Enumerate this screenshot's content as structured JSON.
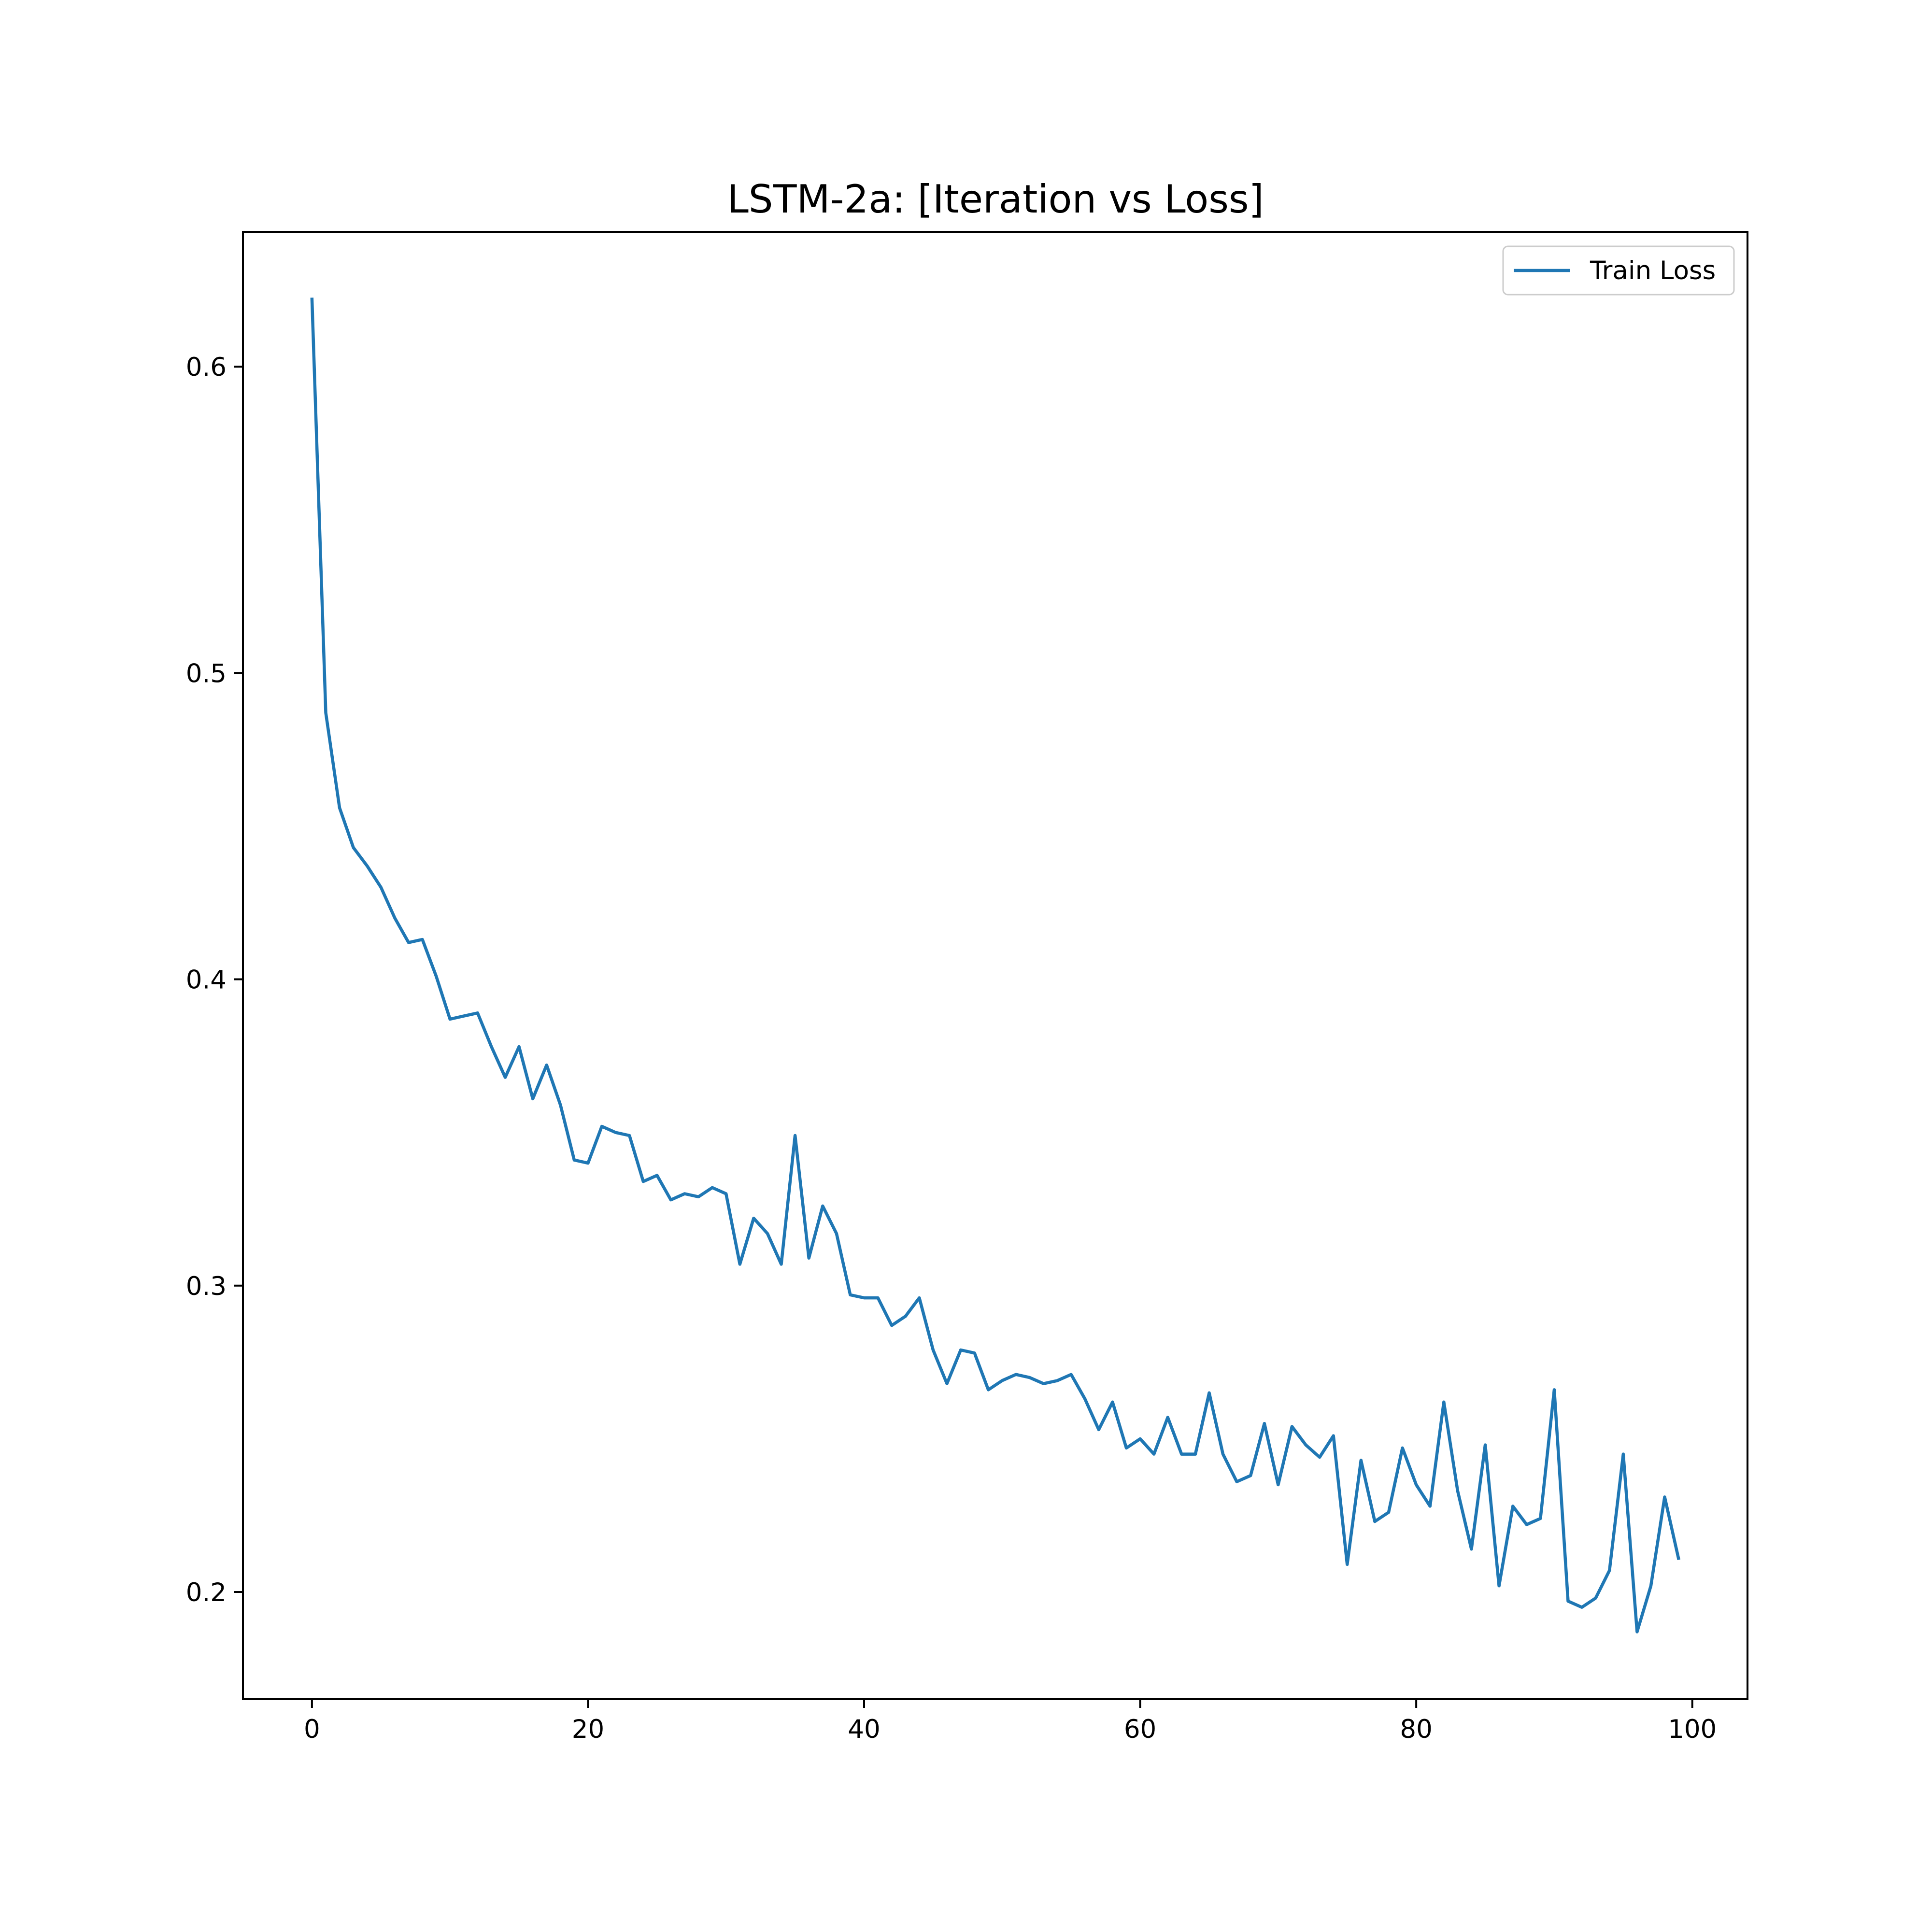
{
  "chart_data": {
    "type": "line",
    "title": "LSTM-2a: [Iteration vs Loss]",
    "xlabel": "",
    "ylabel": "",
    "xlim": [
      -5,
      104
    ],
    "ylim": [
      0.165,
      0.644
    ],
    "xticks": [
      0,
      20,
      40,
      60,
      80,
      100
    ],
    "yticks": [
      0.2,
      0.3,
      0.4,
      0.5,
      0.6
    ],
    "xtick_labels": [
      "0",
      "20",
      "40",
      "60",
      "80",
      "100"
    ],
    "ytick_labels": [
      "0.2",
      "0.3",
      "0.4",
      "0.5",
      "0.6"
    ],
    "grid": false,
    "legend_position": "top-right",
    "series": [
      {
        "name": "Train Loss",
        "color": "#1f77b4",
        "x": [
          0,
          1,
          2,
          3,
          4,
          5,
          6,
          7,
          8,
          9,
          10,
          11,
          12,
          13,
          14,
          15,
          16,
          17,
          18,
          19,
          20,
          21,
          22,
          23,
          24,
          25,
          26,
          27,
          28,
          29,
          30,
          31,
          32,
          33,
          34,
          35,
          36,
          37,
          38,
          39,
          40,
          41,
          42,
          43,
          44,
          45,
          46,
          47,
          48,
          49,
          50,
          51,
          52,
          53,
          54,
          55,
          56,
          57,
          58,
          59,
          60,
          61,
          62,
          63,
          64,
          65,
          66,
          67,
          68,
          69,
          70,
          71,
          72,
          73,
          74,
          75,
          76,
          77,
          78,
          79,
          80,
          81,
          82,
          83,
          84,
          85,
          86,
          87,
          88,
          89,
          90,
          91,
          92,
          93,
          94,
          95,
          96,
          97,
          98,
          99
        ],
        "y": [
          0.622,
          0.487,
          0.456,
          0.443,
          0.437,
          0.43,
          0.42,
          0.412,
          0.413,
          0.401,
          0.387,
          0.388,
          0.389,
          0.378,
          0.368,
          0.378,
          0.361,
          0.372,
          0.359,
          0.341,
          0.34,
          0.352,
          0.35,
          0.349,
          0.334,
          0.336,
          0.328,
          0.33,
          0.329,
          0.332,
          0.33,
          0.307,
          0.322,
          0.317,
          0.307,
          0.349,
          0.309,
          0.326,
          0.317,
          0.297,
          0.296,
          0.296,
          0.287,
          0.29,
          0.296,
          0.279,
          0.268,
          0.279,
          0.278,
          0.266,
          0.269,
          0.271,
          0.27,
          0.268,
          0.269,
          0.271,
          0.263,
          0.253,
          0.262,
          0.247,
          0.25,
          0.245,
          0.257,
          0.245,
          0.245,
          0.265,
          0.245,
          0.236,
          0.238,
          0.255,
          0.235,
          0.254,
          0.248,
          0.244,
          0.251,
          0.209,
          0.243,
          0.223,
          0.226,
          0.247,
          0.235,
          0.228,
          0.262,
          0.233,
          0.214,
          0.248,
          0.202,
          0.228,
          0.222,
          0.224,
          0.266,
          0.197,
          0.195,
          0.198,
          0.207,
          0.245,
          0.187,
          0.202,
          0.231,
          0.211
        ]
      }
    ]
  }
}
